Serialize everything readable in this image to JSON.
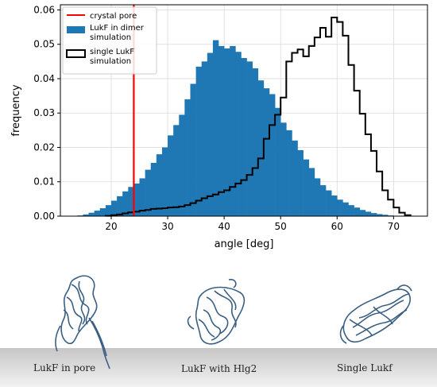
{
  "chart_data": {
    "type": "bar",
    "xlabel": "angle [deg]",
    "ylabel": "frequency",
    "xlim": [
      11,
      76
    ],
    "ylim": [
      0,
      0.0615
    ],
    "xticks": [
      20,
      30,
      40,
      50,
      60,
      70
    ],
    "yticks": [
      0.0,
      0.01,
      0.02,
      0.03,
      0.04,
      0.05,
      0.06
    ],
    "grid": true,
    "legend_placement": "top-left",
    "bin_width": 1,
    "series": [
      {
        "name": "LukF in dimer simulation",
        "style": "filled",
        "color": "#1f77b4",
        "bin_left": [
          13,
          14,
          15,
          16,
          17,
          18,
          19,
          20,
          21,
          22,
          23,
          24,
          25,
          26,
          27,
          28,
          29,
          30,
          31,
          32,
          33,
          34,
          35,
          36,
          37,
          38,
          39,
          40,
          41,
          42,
          43,
          44,
          45,
          46,
          47,
          48,
          49,
          50,
          51,
          52,
          53,
          54,
          55,
          56,
          57,
          58,
          59,
          60,
          61,
          62,
          63,
          64,
          65,
          66,
          67,
          68,
          69,
          70
        ],
        "values": [
          0.0001,
          0.0002,
          0.0005,
          0.001,
          0.0016,
          0.0023,
          0.0032,
          0.0045,
          0.0058,
          0.0072,
          0.0085,
          0.0095,
          0.011,
          0.0135,
          0.0155,
          0.018,
          0.02,
          0.0235,
          0.0265,
          0.0295,
          0.034,
          0.0385,
          0.0435,
          0.045,
          0.0475,
          0.0512,
          0.0495,
          0.0488,
          0.0495,
          0.0478,
          0.046,
          0.045,
          0.043,
          0.0395,
          0.0372,
          0.0355,
          0.0315,
          0.0272,
          0.025,
          0.022,
          0.0192,
          0.0165,
          0.014,
          0.011,
          0.009,
          0.0075,
          0.006,
          0.0048,
          0.004,
          0.0032,
          0.0025,
          0.0018,
          0.0013,
          0.0009,
          0.0006,
          0.0004,
          0.0002,
          0.0001
        ]
      },
      {
        "name": "single LukF simulation",
        "style": "step",
        "color": "#000000",
        "bin_left": [
          19,
          20,
          21,
          22,
          23,
          24,
          25,
          26,
          27,
          28,
          29,
          30,
          31,
          32,
          33,
          34,
          35,
          36,
          37,
          38,
          39,
          40,
          41,
          42,
          43,
          44,
          45,
          46,
          47,
          48,
          49,
          50,
          51,
          52,
          53,
          54,
          55,
          56,
          57,
          58,
          59,
          60,
          61,
          62,
          63,
          64,
          65,
          66,
          67,
          68,
          69,
          70,
          71,
          72
        ],
        "values": [
          0.0001,
          0.0003,
          0.0005,
          0.0008,
          0.0011,
          0.0013,
          0.0016,
          0.0018,
          0.0021,
          0.0022,
          0.0023,
          0.0025,
          0.0026,
          0.0028,
          0.0032,
          0.0038,
          0.0045,
          0.0052,
          0.0058,
          0.0063,
          0.007,
          0.0075,
          0.0085,
          0.0095,
          0.0105,
          0.012,
          0.014,
          0.0168,
          0.0225,
          0.0265,
          0.0295,
          0.0345,
          0.045,
          0.0475,
          0.0485,
          0.0465,
          0.0495,
          0.052,
          0.0548,
          0.0522,
          0.0578,
          0.0565,
          0.0525,
          0.044,
          0.0365,
          0.0298,
          0.0238,
          0.019,
          0.013,
          0.0075,
          0.0048,
          0.0025,
          0.001,
          0.0003
        ]
      }
    ],
    "vline": {
      "name": "crystal pore",
      "x": 24,
      "color": "#ff0000"
    },
    "legend": [
      "crystal pore",
      "LukF in dimer\nsimulation",
      "single LukF\nsimulation"
    ]
  },
  "panels": {
    "labels": [
      "LukF in pore",
      "LukF with Hlg2",
      "Single Lukf"
    ],
    "structure_color": "#3a5f82",
    "membrane_color": "#d4d4d4"
  }
}
